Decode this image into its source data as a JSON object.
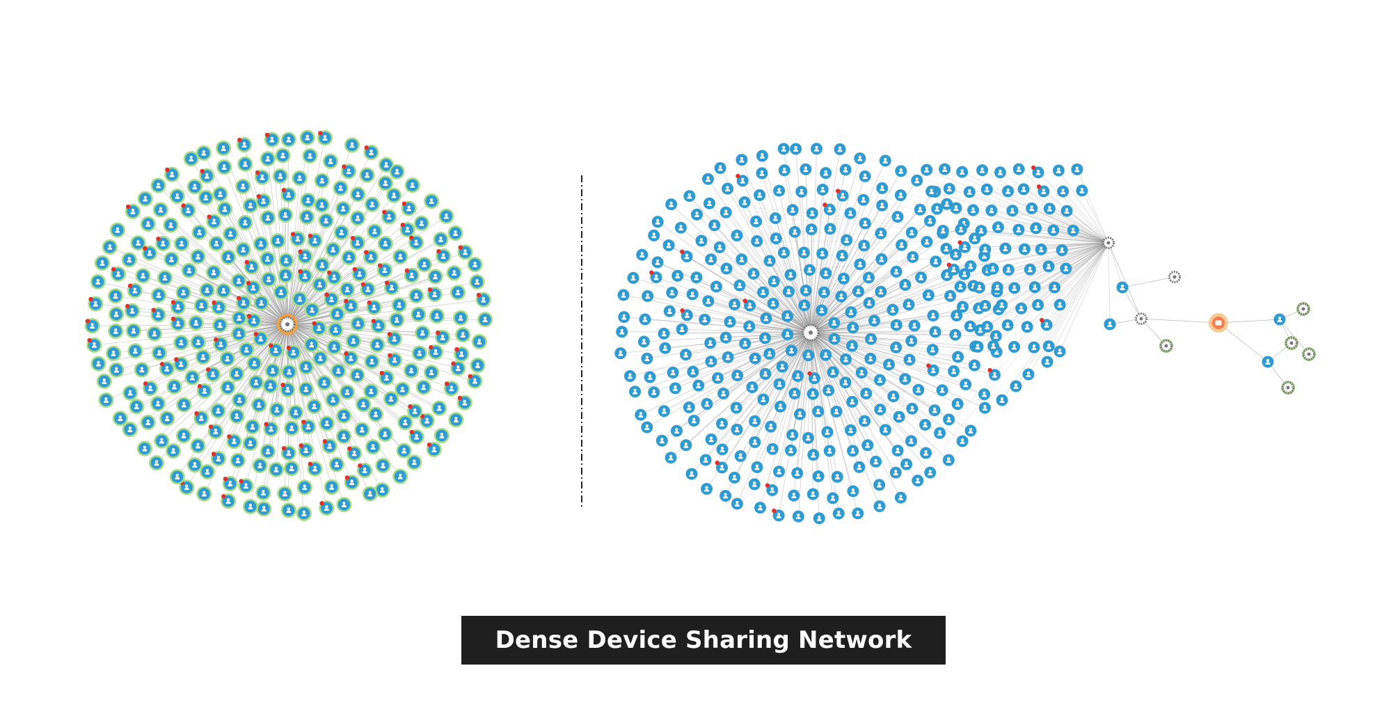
{
  "caption": {
    "text": "Dense Device Sharing Network"
  },
  "colors": {
    "user_node": "#2f9bd0",
    "user_ring_left": "#a9dc8a",
    "flag_dot": "#e0302a",
    "hub_ring": "#f0a23c",
    "edge": "#888888",
    "device_node": "#777777",
    "device_ring_green": "#9ccc7c",
    "highlight_node": "#f57c4c",
    "divider": "#222222",
    "caption_bg": "#1f1f1f",
    "caption_text": "#ffffff"
  },
  "networks": [
    {
      "name": "left-network",
      "node_icon": "user-icon",
      "hub_icon": "device-hub-icon",
      "has_flags": true
    },
    {
      "name": "right-network",
      "node_icon": "user-icon",
      "hub_icon": "device-hub-icon",
      "has_flags": false
    }
  ]
}
